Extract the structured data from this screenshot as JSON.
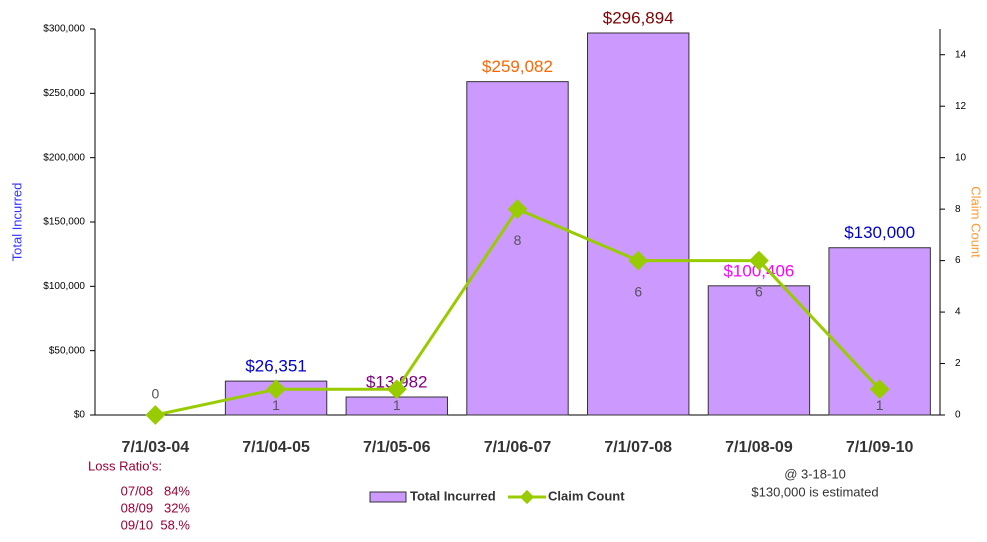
{
  "chart_data": {
    "type": "bar",
    "categories": [
      "7/1/03-04",
      "7/1/04-05",
      "7/1/05-06",
      "7/1/06-07",
      "7/1/07-08",
      "7/1/08-09",
      "7/1/09-10"
    ],
    "y_label": "Total Incurred",
    "y2_label": "Claim Count",
    "ylim": [
      0,
      300000
    ],
    "yticks": [
      {
        "value": 0,
        "label": "$0"
      },
      {
        "value": 50000,
        "label": "$50,000"
      },
      {
        "value": 100000,
        "label": "$100,000"
      },
      {
        "value": 150000,
        "label": "$150,000"
      },
      {
        "value": 200000,
        "label": "$200,000"
      },
      {
        "value": 250000,
        "label": "$250,000"
      },
      {
        "value": 300000,
        "label": "$300,000"
      }
    ],
    "y2lim": [
      0,
      15
    ],
    "y2ticks": [
      0,
      2,
      4,
      6,
      8,
      10,
      12,
      14
    ],
    "series": [
      {
        "name": "Total Incurred",
        "type": "bar",
        "color": "#cc99ff",
        "values": [
          0,
          26351,
          13982,
          259082,
          296894,
          100406,
          130000
        ],
        "value_labels": [
          null,
          "$26,351",
          "$13,982",
          "$259,082",
          "$296,894",
          "$100,406",
          "$130,000"
        ],
        "label_colors": [
          null,
          "#0000cc",
          "#800080",
          "#ff6600",
          "#800000",
          "#ff00ff",
          "#0000cc"
        ]
      },
      {
        "name": "Claim Count",
        "type": "line",
        "axis": "y2",
        "color": "#99cc00",
        "values": [
          0,
          1,
          1,
          8,
          6,
          6,
          1
        ]
      }
    ],
    "legend": "bottom",
    "notes": {
      "loss_ratio_title": "Loss Ratio's:",
      "loss_ratios": [
        "07/08   84%",
        "08/09   32%",
        "09/10  58.%"
      ],
      "estimate": [
        "@ 3-18-10",
        "$130,000 is estimated"
      ]
    }
  }
}
